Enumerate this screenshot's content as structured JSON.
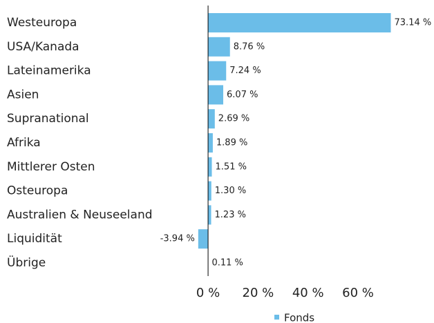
{
  "chart_data": {
    "type": "barh",
    "categories": [
      "Westeuropa",
      "USA/Kanada",
      "Lateinamerika",
      "Asien",
      "Supranational",
      "Afrika",
      "Mittlerer Osten",
      "Osteuropa",
      "Australien & Neuseeland",
      "Liquidität",
      "Übrige"
    ],
    "series": [
      {
        "name": "Fonds",
        "color": "#6bbde8",
        "values": [
          73.14,
          8.76,
          7.24,
          6.07,
          2.69,
          1.89,
          1.51,
          1.3,
          1.23,
          -3.94,
          0.11
        ],
        "value_labels": [
          "73.14 %",
          "8.76 %",
          "7.24 %",
          "6.07 %",
          "2.69 %",
          "1.89 %",
          "1.51 %",
          "1.30 %",
          "1.23 %",
          "-3.94 %",
          "0.11 %"
        ]
      }
    ],
    "xlim": [
      -5,
      85
    ],
    "xticks": [
      {
        "value": 0,
        "label": "0 %"
      },
      {
        "value": 20,
        "label": "20 %"
      },
      {
        "value": 40,
        "label": "40 %"
      },
      {
        "value": 60,
        "label": "60 %"
      }
    ],
    "legend": "bottom"
  }
}
